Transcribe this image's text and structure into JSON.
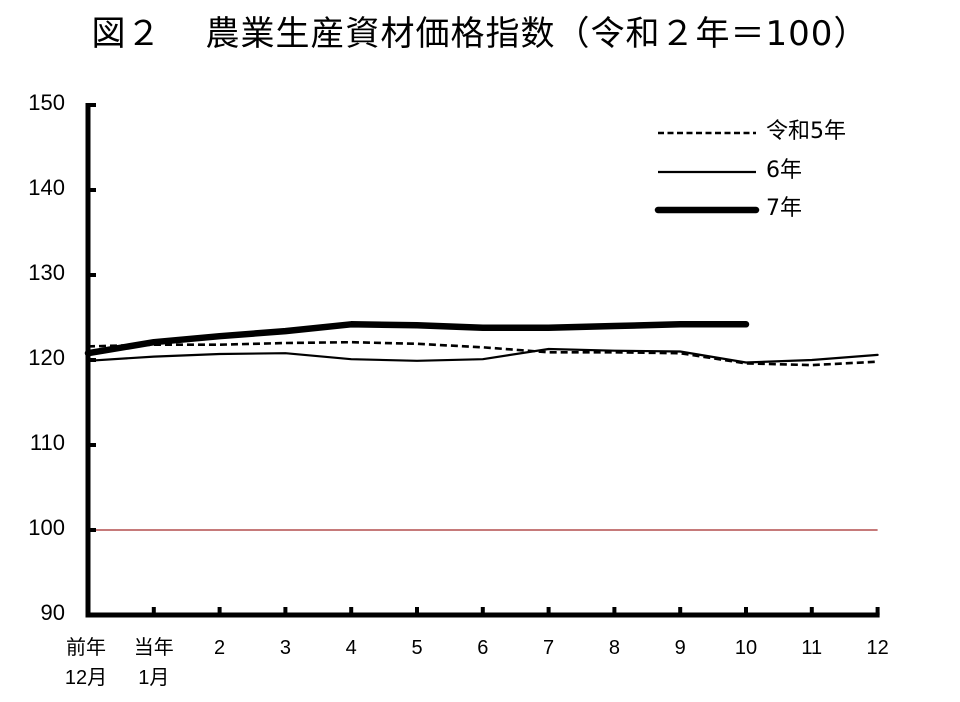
{
  "title": {
    "figure_no": "図２",
    "text": "農業生産資材価格指数（令和２年＝100）"
  },
  "legend": [
    {
      "label": "令和5年",
      "style": "dashed"
    },
    {
      "label": "6年",
      "style": "thin"
    },
    {
      "label": "7年",
      "style": "thick"
    }
  ],
  "y_axis": {
    "ticks": [
      "150",
      "140",
      "130",
      "120",
      "110",
      "100",
      "90"
    ]
  },
  "x_axis": {
    "ticks": [
      {
        "line1": "前年",
        "line2": "12月"
      },
      {
        "line1": "当年",
        "line2": "1月"
      },
      {
        "line1": "2",
        "line2": ""
      },
      {
        "line1": "3",
        "line2": ""
      },
      {
        "line1": "4",
        "line2": ""
      },
      {
        "line1": "5",
        "line2": ""
      },
      {
        "line1": "6",
        "line2": ""
      },
      {
        "line1": "7",
        "line2": ""
      },
      {
        "line1": "8",
        "line2": ""
      },
      {
        "line1": "9",
        "line2": ""
      },
      {
        "line1": "10",
        "line2": ""
      },
      {
        "line1": "11",
        "line2": ""
      },
      {
        "line1": "12",
        "line2": ""
      }
    ]
  },
  "colors": {
    "axis": "#000000",
    "series": "#000000",
    "reference_line": "#a52a2a"
  },
  "chart_data": {
    "type": "line",
    "title": "図２ 農業生産資材価格指数（令和２年＝100）",
    "xlabel": "",
    "ylabel": "",
    "categories": [
      "前年12月",
      "当年1月",
      "2",
      "3",
      "4",
      "5",
      "6",
      "7",
      "8",
      "9",
      "10",
      "11",
      "12"
    ],
    "series": [
      {
        "name": "令和5年",
        "style": "dashed",
        "values": [
          121.6,
          121.8,
          121.8,
          122.0,
          122.1,
          121.9,
          121.5,
          120.9,
          120.9,
          120.8,
          119.6,
          119.4,
          119.8
        ]
      },
      {
        "name": "6年",
        "style": "thin solid",
        "values": [
          119.9,
          120.4,
          120.7,
          120.8,
          120.1,
          119.9,
          120.1,
          121.3,
          121.1,
          121.0,
          119.7,
          120.0,
          120.6
        ]
      },
      {
        "name": "7年",
        "style": "thick solid",
        "values": [
          120.8,
          122.1,
          122.8,
          123.4,
          124.2,
          124.1,
          123.8,
          123.8,
          124.0,
          124.2,
          124.2,
          null,
          null
        ]
      }
    ],
    "ylim": [
      90,
      150
    ],
    "yticks": [
      90,
      100,
      110,
      120,
      130,
      140,
      150
    ],
    "reference_line": {
      "y": 100,
      "color": "#a52a2a"
    },
    "grid": false,
    "legend_position": "upper right"
  }
}
